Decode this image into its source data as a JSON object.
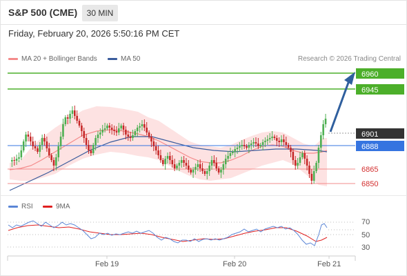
{
  "header": {
    "title": "S&P 500 (CME)",
    "timeframe": "30 MIN",
    "datetime": "Friday, February 20, 2026 5:50:16 PM CET"
  },
  "legend": {
    "ma20_label": "MA 20 + Bollinger Bands",
    "ma50_label": "MA 50",
    "copyright": "Research © 2026 Trading Central",
    "rsi_label": "RSI",
    "rsi_ma_label": "9MA"
  },
  "colors": {
    "up_candle": "#4caf50",
    "down_candle": "#c62828",
    "ma20": "#f48a8a",
    "ma50": "#3a5b9c",
    "bands_fill": "#fde2e2",
    "resistance": "#4caf2a",
    "pivot": "#3574e0",
    "support": "#f28b8b",
    "last_price": "#333333",
    "arrow": "#2f5f9e",
    "rsi": "#5b86d6",
    "rsi_ma": "#e02020"
  },
  "levels": {
    "resistance_2": "6960",
    "resistance_1": "6945",
    "last_price": "6901",
    "pivot": "6888",
    "support_1": "6865",
    "support_2": "6850"
  },
  "rsi_axis": [
    "70",
    "50",
    "30"
  ],
  "time_axis": [
    "Feb 19",
    "Feb 20",
    "Feb 21"
  ],
  "chart_data": {
    "type": "candlestick",
    "title": "S&P 500 (CME)",
    "price_levels": {
      "resistance": [
        6960,
        6945
      ],
      "pivot": 6888,
      "support": [
        6865,
        6850
      ],
      "last": 6901
    },
    "rsi_ticks": [
      70,
      50,
      30
    ],
    "x_ticks": [
      "Feb 19",
      "Feb 20",
      "Feb 21"
    ]
  }
}
